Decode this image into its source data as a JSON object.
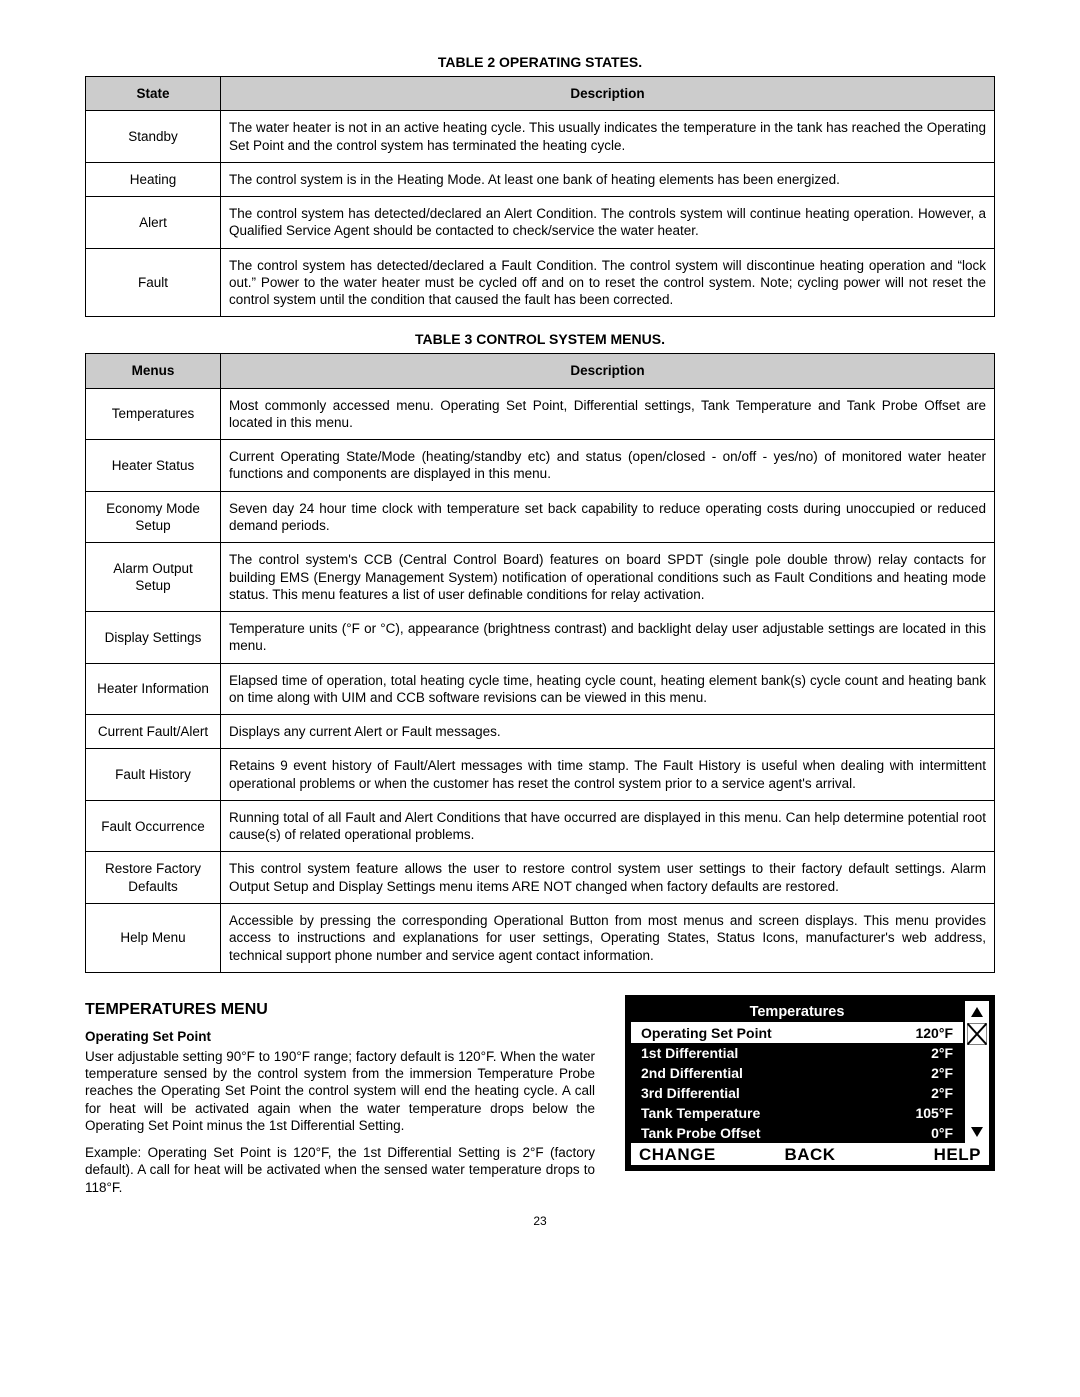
{
  "table2": {
    "title": "TABLE 2 OPERATING STATES.",
    "col1": "State",
    "col2": "Description",
    "rows": [
      {
        "state": "Standby",
        "desc": "The water heater is not in an active heating cycle. This usually indicates the temperature in the tank has reached the Operating Set Point and the control system has terminated the heating cycle."
      },
      {
        "state": "Heating",
        "desc": "The control system is in the Heating Mode. At least one bank of heating elements has been energized."
      },
      {
        "state": "Alert",
        "desc": "The control system has detected/declared an Alert Condition. The controls system will continue heating operation. However, a Qualified Service Agent should be contacted to check/service the water heater."
      },
      {
        "state": "Fault",
        "desc": "The control system has detected/declared a Fault Condition. The control system will discontinue heating operation and “lock out.” Power to the water heater must be cycled off and on to reset the control system. Note; cycling power will not reset the control system until the condition that caused the fault has been corrected."
      }
    ]
  },
  "table3": {
    "title": "TABLE 3 CONTROL SYSTEM MENUS.",
    "col1": "Menus",
    "col2": "Description",
    "rows": [
      {
        "menu": "Temperatures",
        "desc": "Most commonly accessed menu. Operating Set Point, Differential settings, Tank Temperature and Tank Probe Offset are located in this menu."
      },
      {
        "menu": "Heater Status",
        "desc": "Current Operating State/Mode (heating/standby etc) and status (open/closed - on/off - yes/no) of monitored water heater functions and components are displayed in this menu."
      },
      {
        "menu": "Economy Mode Setup",
        "desc": "Seven day 24 hour time clock with temperature set back capability to reduce operating costs during unoccupied or reduced demand periods."
      },
      {
        "menu": "Alarm Output Setup",
        "desc": "The control system's CCB (Central Control Board) features on board SPDT (single pole double throw) relay contacts for building EMS (Energy Management System) notification of operational conditions such as Fault Conditions and heating mode status. This menu features a list of user definable conditions for relay activation."
      },
      {
        "menu": "Display Settings",
        "desc": "Temperature units (°F or °C), appearance (brightness contrast) and backlight delay user adjustable settings are located in this menu."
      },
      {
        "menu": "Heater Information",
        "desc": "Elapsed time of operation, total heating cycle time, heating cycle count, heating element bank(s) cycle count and heating bank on time along with UIM and CCB software revisions can be viewed in this menu."
      },
      {
        "menu": "Current Fault/Alert",
        "desc": "Displays any current Alert or Fault messages."
      },
      {
        "menu": "Fault History",
        "desc": "Retains 9 event history of Fault/Alert messages with time stamp. The Fault History is useful when dealing with intermittent operational problems or when the customer has reset the control system prior to a service agent's arrival."
      },
      {
        "menu": "Fault Occurrence",
        "desc": "Running total of all Fault and Alert Conditions that have occurred are displayed in this menu. Can help determine potential root cause(s) of related operational problems."
      },
      {
        "menu": "Restore Factory Defaults",
        "desc": "This control system feature allows the user to restore control system user settings to their factory default settings. Alarm Output Setup and Display Settings menu items ARE NOT changed when factory defaults are restored."
      },
      {
        "menu": "Help Menu",
        "desc": "Accessible by pressing the corresponding Operational Button from most menus and screen displays. This menu provides access to instructions and explanations for user settings, Operating States, Status Icons, manufacturer's web address, technical support phone number and service agent contact information."
      }
    ]
  },
  "tempSection": {
    "heading": "TEMPERATURES MENU",
    "sub": "Operating Set Point",
    "p1": "User adjustable setting 90°F to 190°F range; factory default is 120°F. When the water temperature sensed by the control system from the immersion Temperature Probe reaches the Operating Set Point the control system will end the heating cycle. A call for heat will be activated again when the water temperature drops below the Operating Set Point minus the 1st Differential Setting.",
    "p2": "Example: Operating Set Point is 120°F, the 1st Differential Setting is 2°F (factory default). A call for heat will be activated when the sensed water temperature drops to 118°F."
  },
  "lcd": {
    "title": "Temperatures",
    "rows": [
      {
        "label": "Operating Set Point",
        "value": "120°F",
        "selected": true
      },
      {
        "label": "1st Differential",
        "value": "2°F",
        "selected": false
      },
      {
        "label": "2nd Differential",
        "value": "2°F",
        "selected": false
      },
      {
        "label": "3rd Differential",
        "value": "2°F",
        "selected": false
      },
      {
        "label": "Tank Temperature",
        "value": "105°F",
        "selected": false
      },
      {
        "label": "Tank Probe Offset",
        "value": "0°F",
        "selected": false
      }
    ],
    "footer": {
      "change": "CHANGE",
      "back": "BACK",
      "help": "HELP"
    }
  },
  "pageNum": "23"
}
